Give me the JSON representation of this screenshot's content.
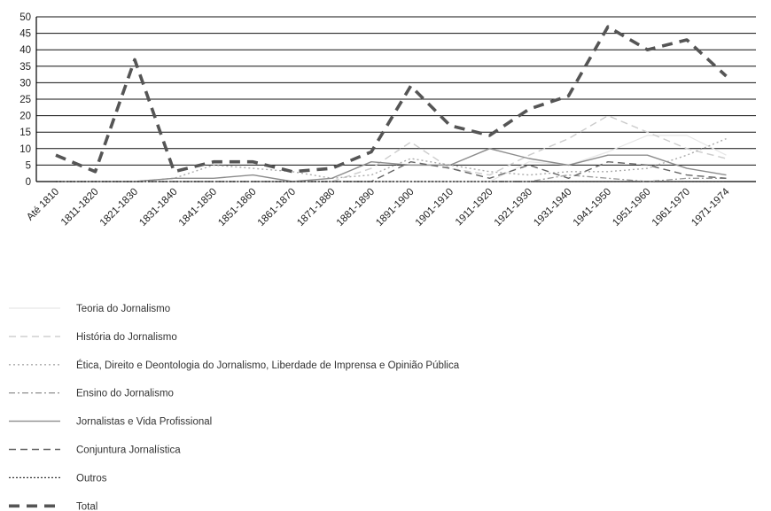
{
  "chart_data": {
    "type": "line",
    "title": "",
    "xlabel": "",
    "ylabel": "",
    "ylim": [
      0,
      50
    ],
    "yticks": [
      0,
      5,
      10,
      15,
      20,
      25,
      30,
      35,
      40,
      45,
      50
    ],
    "grid": true,
    "legend_position": "bottom",
    "categories": [
      "Até 1810",
      "1811-1820",
      "1821-1830",
      "1831-1840",
      "1841-1850",
      "1851-1860",
      "1861-1870",
      "1871-1880",
      "1881-1890",
      "1891-1900",
      "1901-1910",
      "1911-1920",
      "1921-1930",
      "1931-1940",
      "1941-1950",
      "1951-1960",
      "1961-1970",
      "1971-1974"
    ],
    "series": [
      {
        "name": "Teoria do Jornalismo",
        "color": "#e6e6e6",
        "dash": "solid",
        "width": 1.2,
        "values": [
          0,
          0,
          0,
          0,
          0,
          0,
          0,
          0,
          0,
          0,
          0,
          0,
          6,
          5,
          9,
          14,
          14,
          8
        ]
      },
      {
        "name": "História do Jornalismo",
        "color": "#cccccc",
        "dash": "8,5",
        "width": 1.4,
        "values": [
          0,
          0,
          0,
          0,
          0,
          0,
          0,
          0,
          4,
          12,
          4,
          2,
          8,
          13,
          20,
          15,
          10,
          7
        ]
      },
      {
        "name": "Ética, Direito e Deontologia do Jornalismo, Liberdade de Imprensa e Opinião Pública",
        "color": "#aaaaaa",
        "dash": "2,3",
        "width": 1.4,
        "values": [
          0,
          0,
          0,
          1,
          5,
          4,
          3,
          1,
          2,
          7,
          5,
          3,
          2,
          3,
          3,
          4,
          8,
          13
        ]
      },
      {
        "name": "Ensino do Jornalismo",
        "color": "#999999",
        "dash": "7,3,2,3",
        "width": 1.3,
        "values": [
          0,
          0,
          0,
          0,
          0,
          0,
          0,
          0,
          0,
          0,
          0,
          0,
          0,
          2,
          1,
          0,
          1,
          1
        ]
      },
      {
        "name": "Jornalistas e Vida Profissional",
        "color": "#8c8c8c",
        "dash": "solid",
        "width": 1.4,
        "values": [
          0,
          0,
          0,
          1,
          1,
          2,
          0,
          1,
          6,
          5,
          5,
          10,
          7,
          5,
          8,
          8,
          4,
          2
        ]
      },
      {
        "name": "Conjuntura Jornalística",
        "color": "#666666",
        "dash": "8,5",
        "width": 1.4,
        "values": [
          0,
          0,
          0,
          0,
          0,
          0,
          0,
          0,
          0,
          6,
          4,
          1,
          5,
          1,
          6,
          5,
          2,
          1
        ]
      },
      {
        "name": "Outros",
        "color": "#333333",
        "dash": "2,2",
        "width": 1.2,
        "values": [
          0,
          0,
          0,
          0,
          0,
          0,
          0,
          0,
          0,
          0,
          0,
          0,
          0,
          0,
          0,
          0,
          0,
          0
        ]
      },
      {
        "name": "Total",
        "color": "#555555",
        "dash": "12,8",
        "width": 3.6,
        "values": [
          8,
          3,
          37,
          3,
          6,
          6,
          3,
          4,
          9,
          29,
          17,
          14,
          22,
          26,
          47,
          40,
          43,
          32
        ]
      }
    ]
  }
}
